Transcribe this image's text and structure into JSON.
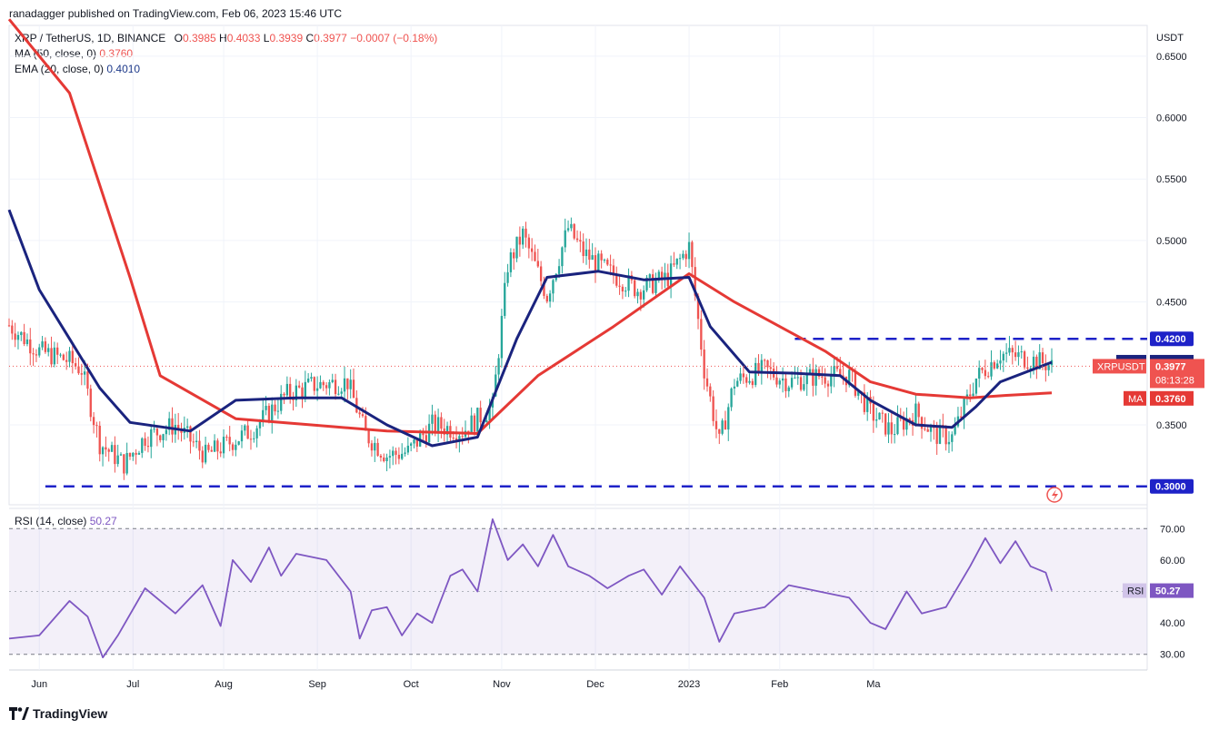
{
  "publisher_line": "ranadagger published on TradingView.com, Feb 06, 2023 15:46 UTC",
  "legend": {
    "symbol": "XRP / TetherUS, 1D, BINANCE",
    "o_label": "O",
    "o": "0.3985",
    "h_label": "H",
    "h": "0.4033",
    "l_label": "L",
    "l": "0.3939",
    "c_label": "C",
    "c": "0.3977",
    "change": "−0.0007 (−0.18%)",
    "ma_label": "MA (50, close, 0)",
    "ma_value": "0.3760",
    "ema_label": "EMA (20, close, 0)",
    "ema_value": "0.4010",
    "rsi_label": "RSI (14, close)",
    "rsi_value": "50.27"
  },
  "axis": {
    "currency": "USDT",
    "price_ticks": [
      "0.6500",
      "0.6000",
      "0.5500",
      "0.5000",
      "0.4500",
      "0.3500"
    ],
    "rsi_ticks": [
      "70.00",
      "60.00",
      "40.00",
      "30.00"
    ],
    "months": [
      "Jun",
      "Jul",
      "Aug",
      "Sep",
      "Oct",
      "Nov",
      "Dec",
      "2023",
      "Feb",
      "Ma"
    ]
  },
  "badges": {
    "level_high": "0.4200",
    "level_low": "0.3000",
    "ema_tag": "EMA",
    "ema_val": "0.4010",
    "symbol_tag": "XRPUSDT",
    "last_price": "0.3977",
    "countdown": "08:13:28",
    "ma_tag": "MA",
    "ma_val": "0.3760",
    "rsi_tag": "RSI",
    "rsi_val": "50.27"
  },
  "branding": {
    "logo_text": "TradingView"
  },
  "colors": {
    "up": "#26a69a",
    "down": "#ef5350",
    "ma": "#e53935",
    "ema": "#1a237e",
    "rsi": "#7e57c2",
    "level": "#1e22c8"
  },
  "chart_data": {
    "type": "candlestick",
    "title": "XRP / TetherUS, 1D, BINANCE",
    "ylabel": "USDT",
    "ylim": [
      0.285,
      0.675
    ],
    "horizontal_levels": [
      0.42,
      0.3
    ],
    "x_start": "2023-05-22",
    "series": [
      {
        "name": "XRP / TetherUS",
        "type": "ohlc",
        "close_points": [
          [
            0,
            0.431
          ],
          [
            10,
            0.41
          ],
          [
            20,
            0.402
          ],
          [
            24,
            0.395
          ],
          [
            30,
            0.335
          ],
          [
            38,
            0.318
          ],
          [
            45,
            0.34
          ],
          [
            55,
            0.35
          ],
          [
            65,
            0.325
          ],
          [
            80,
            0.345
          ],
          [
            92,
            0.375
          ],
          [
            100,
            0.382
          ],
          [
            112,
            0.385
          ],
          [
            118,
            0.342
          ],
          [
            125,
            0.325
          ],
          [
            132,
            0.328
          ],
          [
            140,
            0.35
          ],
          [
            150,
            0.345
          ],
          [
            160,
            0.365
          ],
          [
            165,
            0.48
          ],
          [
            170,
            0.505
          ],
          [
            178,
            0.455
          ],
          [
            185,
            0.51
          ],
          [
            190,
            0.49
          ],
          [
            198,
            0.475
          ],
          [
            208,
            0.46
          ],
          [
            218,
            0.47
          ],
          [
            225,
            0.495
          ],
          [
            230,
            0.395
          ],
          [
            235,
            0.335
          ],
          [
            240,
            0.385
          ],
          [
            250,
            0.395
          ],
          [
            258,
            0.385
          ],
          [
            268,
            0.39
          ],
          [
            278,
            0.39
          ],
          [
            285,
            0.36
          ],
          [
            292,
            0.345
          ],
          [
            300,
            0.36
          ],
          [
            306,
            0.342
          ],
          [
            312,
            0.34
          ],
          [
            320,
            0.388
          ],
          [
            328,
            0.408
          ],
          [
            335,
            0.405
          ],
          [
            343,
            0.4
          ],
          [
            345,
            0.3977
          ]
        ]
      },
      {
        "name": "MA (50, close, 0)",
        "type": "line",
        "points": [
          [
            0,
            0.68
          ],
          [
            20,
            0.62
          ],
          [
            40,
            0.47
          ],
          [
            50,
            0.39
          ],
          [
            75,
            0.355
          ],
          [
            100,
            0.35
          ],
          [
            125,
            0.345
          ],
          [
            155,
            0.343
          ],
          [
            175,
            0.39
          ],
          [
            200,
            0.43
          ],
          [
            225,
            0.473
          ],
          [
            240,
            0.45
          ],
          [
            255,
            0.43
          ],
          [
            270,
            0.41
          ],
          [
            285,
            0.385
          ],
          [
            300,
            0.375
          ],
          [
            318,
            0.372
          ],
          [
            330,
            0.374
          ],
          [
            345,
            0.376
          ]
        ]
      },
      {
        "name": "EMA (20, close, 0)",
        "type": "line",
        "points": [
          [
            0,
            0.525
          ],
          [
            10,
            0.46
          ],
          [
            20,
            0.42
          ],
          [
            30,
            0.38
          ],
          [
            40,
            0.352
          ],
          [
            60,
            0.345
          ],
          [
            75,
            0.37
          ],
          [
            95,
            0.372
          ],
          [
            110,
            0.372
          ],
          [
            125,
            0.35
          ],
          [
            140,
            0.333
          ],
          [
            155,
            0.34
          ],
          [
            168,
            0.42
          ],
          [
            178,
            0.47
          ],
          [
            195,
            0.475
          ],
          [
            210,
            0.468
          ],
          [
            225,
            0.47
          ],
          [
            232,
            0.43
          ],
          [
            245,
            0.393
          ],
          [
            260,
            0.392
          ],
          [
            275,
            0.39
          ],
          [
            285,
            0.37
          ],
          [
            300,
            0.35
          ],
          [
            312,
            0.348
          ],
          [
            320,
            0.365
          ],
          [
            328,
            0.385
          ],
          [
            345,
            0.401
          ]
        ]
      },
      {
        "name": "RSI (14, close)",
        "type": "line",
        "ylim": [
          25,
          75
        ],
        "points": [
          [
            0,
            35
          ],
          [
            10,
            36
          ],
          [
            20,
            47
          ],
          [
            26,
            42
          ],
          [
            31,
            29
          ],
          [
            36,
            36
          ],
          [
            45,
            51
          ],
          [
            55,
            43
          ],
          [
            64,
            52
          ],
          [
            70,
            39
          ],
          [
            74,
            60
          ],
          [
            80,
            53
          ],
          [
            86,
            64
          ],
          [
            90,
            55
          ],
          [
            95,
            62
          ],
          [
            105,
            60
          ],
          [
            113,
            50
          ],
          [
            116,
            35
          ],
          [
            120,
            44
          ],
          [
            125,
            45
          ],
          [
            130,
            36
          ],
          [
            135,
            43
          ],
          [
            140,
            40
          ],
          [
            146,
            55
          ],
          [
            150,
            57
          ],
          [
            155,
            50
          ],
          [
            160,
            73
          ],
          [
            165,
            60
          ],
          [
            170,
            65
          ],
          [
            175,
            58
          ],
          [
            180,
            68
          ],
          [
            185,
            58
          ],
          [
            192,
            55
          ],
          [
            198,
            51
          ],
          [
            205,
            55
          ],
          [
            210,
            57
          ],
          [
            216,
            49
          ],
          [
            222,
            58
          ],
          [
            230,
            48
          ],
          [
            235,
            34
          ],
          [
            240,
            43
          ],
          [
            250,
            45
          ],
          [
            258,
            52
          ],
          [
            268,
            50
          ],
          [
            278,
            48
          ],
          [
            285,
            40
          ],
          [
            290,
            38
          ],
          [
            297,
            50
          ],
          [
            302,
            43
          ],
          [
            310,
            45
          ],
          [
            318,
            58
          ],
          [
            323,
            67
          ],
          [
            328,
            59
          ],
          [
            333,
            66
          ],
          [
            338,
            58
          ],
          [
            343,
            56
          ],
          [
            345,
            50.27
          ]
        ]
      }
    ]
  }
}
